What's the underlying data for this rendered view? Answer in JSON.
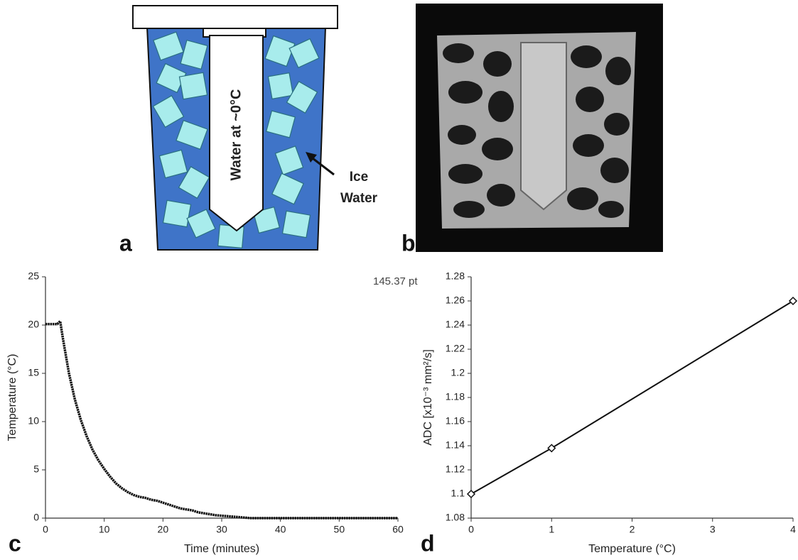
{
  "panel_labels": [
    "a",
    "b",
    "c",
    "d"
  ],
  "annotation": "145.37 pt",
  "diagram": {
    "tube_label": "Water at ~0°C",
    "ice_label": [
      "Ice",
      "Water"
    ]
  },
  "chart_data": [
    {
      "type": "line",
      "markers": false,
      "color": "#111111",
      "x": [
        0,
        1,
        2,
        2.5,
        3,
        4,
        5,
        6,
        7,
        8,
        9,
        10,
        11,
        12,
        13,
        14,
        15,
        16,
        17,
        18,
        19,
        20,
        21,
        22,
        23,
        24,
        25,
        26,
        27,
        28,
        29,
        30,
        31,
        32,
        33,
        34,
        35,
        40,
        45,
        50,
        55,
        60
      ],
      "values": [
        20.1,
        20.1,
        20.1,
        20.4,
        18.5,
        15,
        12.3,
        10.2,
        8.5,
        7.1,
        6,
        5.1,
        4.3,
        3.6,
        3.1,
        2.7,
        2.4,
        2.2,
        2.1,
        1.9,
        1.8,
        1.6,
        1.4,
        1.2,
        1.0,
        0.9,
        0.8,
        0.6,
        0.5,
        0.4,
        0.3,
        0.25,
        0.2,
        0.15,
        0.1,
        0.05,
        0,
        0,
        0,
        0,
        0,
        0
      ],
      "xlabel": "Time (minutes)",
      "ylabel": "Temperature (°C)",
      "xlim": [
        0,
        60
      ],
      "xticks": [
        0,
        10,
        20,
        30,
        40,
        50,
        60
      ],
      "ylim": [
        0,
        25
      ],
      "yticks": [
        0,
        5,
        10,
        15,
        20,
        25
      ]
    },
    {
      "type": "line",
      "markers": true,
      "color": "#111111",
      "x": [
        0,
        1,
        4
      ],
      "values": [
        1.1,
        1.138,
        1.26
      ],
      "xlabel": "Temperature (°C)",
      "ylabel": "ADC [x10⁻³ mm²/s]",
      "xlim": [
        0,
        4
      ],
      "xticks": [
        0,
        1,
        2,
        3,
        4
      ],
      "ylim": [
        1.08,
        1.28
      ],
      "yticks": [
        1.08,
        1.1,
        1.12,
        1.14,
        1.16,
        1.18,
        1.2,
        1.22,
        1.24,
        1.26,
        1.28
      ]
    }
  ]
}
